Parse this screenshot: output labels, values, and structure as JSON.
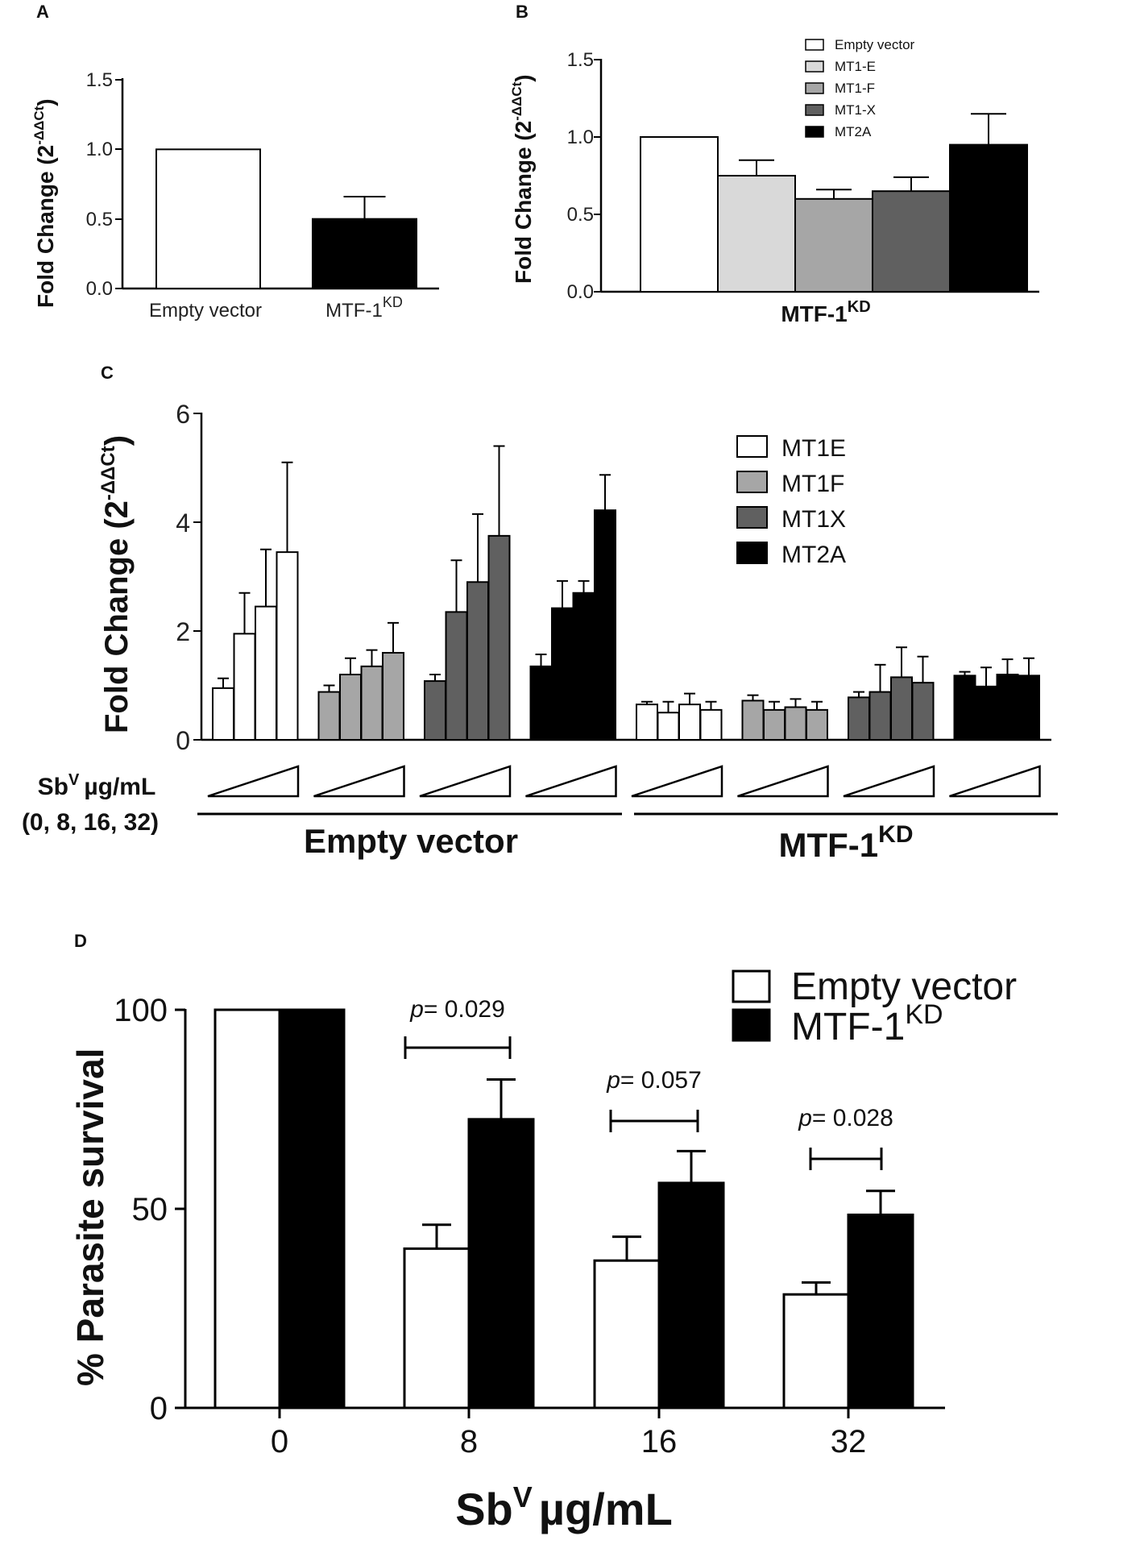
{
  "colors": {
    "empty_vector": "#ffffff",
    "mt1e": "#d9d9d9",
    "mt1f": "#a6a6a6",
    "mt1x": "#606060",
    "mt2a": "#000000",
    "mtf1kd": "#000000",
    "axis": "#000000"
  },
  "chart_data": [
    {
      "panel": "A",
      "type": "bar",
      "ylabel": "Fold Change (2",
      "ylabel_sup": "-ΔΔCt",
      "ylabel_close": ")",
      "ylim": [
        0,
        1.5
      ],
      "yticks": [
        "0.0",
        "0.5",
        "1.0",
        "1.5"
      ],
      "categories": [
        "Empty vector",
        "MTF-1"
      ],
      "category_sup": [
        "",
        "KD"
      ],
      "values": [
        1.0,
        0.5
      ],
      "errors": [
        0,
        0.16
      ]
    },
    {
      "panel": "B",
      "type": "bar",
      "ylabel": "Fold Change (2",
      "ylabel_sup": "-ΔΔCt",
      "ylabel_close": ")",
      "ylim": [
        0,
        1.5
      ],
      "yticks": [
        "0.0",
        "0.5",
        "1.0",
        "1.5"
      ],
      "xlabel": "MTF-1",
      "xlabel_sup": "KD",
      "series": [
        {
          "name": "Empty vector",
          "value": 1.0,
          "error": 0
        },
        {
          "name": "MT1-E",
          "value": 0.75,
          "error": 0.1
        },
        {
          "name": "MT1-F",
          "value": 0.6,
          "error": 0.06
        },
        {
          "name": "MT1-X",
          "value": 0.65,
          "error": 0.09
        },
        {
          "name": "MT2A",
          "value": 0.95,
          "error": 0.2
        }
      ]
    },
    {
      "panel": "C",
      "type": "bar",
      "ylabel": "Fold Change (2",
      "ylabel_sup": "-ΔΔCt",
      "ylabel_close": ")",
      "ylim": [
        0,
        6
      ],
      "yticks": [
        "0",
        "2",
        "4",
        "6"
      ],
      "dose_label": "Sb",
      "dose_label_sup": "V",
      "dose_unit": "µg/mL",
      "dose_values": "(0, 8, 16, 32)",
      "legend": [
        "MT1E",
        "MT1F",
        "MT1X",
        "MT2A"
      ],
      "groups": [
        {
          "name": "Empty vector",
          "name_sup": "",
          "series": [
            {
              "name": "MT1E",
              "values": [
                0.95,
                1.95,
                2.45,
                3.45
              ],
              "errors": [
                0.18,
                0.75,
                1.05,
                1.65
              ]
            },
            {
              "name": "MT1F",
              "values": [
                0.88,
                1.2,
                1.35,
                1.6
              ],
              "errors": [
                0.12,
                0.3,
                0.3,
                0.55
              ]
            },
            {
              "name": "MT1X",
              "values": [
                1.08,
                2.35,
                2.9,
                3.75
              ],
              "errors": [
                0.12,
                0.95,
                1.25,
                1.65
              ]
            },
            {
              "name": "MT2A",
              "values": [
                1.35,
                2.42,
                2.7,
                4.22
              ],
              "errors": [
                0.22,
                0.5,
                0.22,
                0.65
              ]
            }
          ]
        },
        {
          "name": "MTF-1",
          "name_sup": "KD",
          "series": [
            {
              "name": "MT1E",
              "values": [
                0.65,
                0.5,
                0.65,
                0.55
              ],
              "errors": [
                0.05,
                0.2,
                0.2,
                0.15
              ]
            },
            {
              "name": "MT1F",
              "values": [
                0.72,
                0.55,
                0.6,
                0.55
              ],
              "errors": [
                0.1,
                0.15,
                0.15,
                0.15
              ]
            },
            {
              "name": "MT1X",
              "values": [
                0.78,
                0.88,
                1.15,
                1.05
              ],
              "errors": [
                0.1,
                0.5,
                0.55,
                0.48
              ]
            },
            {
              "name": "MT2A",
              "values": [
                1.18,
                0.98,
                1.2,
                1.18
              ],
              "errors": [
                0.07,
                0.35,
                0.28,
                0.32
              ]
            }
          ]
        }
      ]
    },
    {
      "panel": "D",
      "type": "bar",
      "ylabel": "% Parasite survival",
      "xlabel": "Sb",
      "xlabel_sup": "V",
      "xlabel_unit": "µg/mL",
      "ylim": [
        0,
        100
      ],
      "yticks": [
        "0",
        "50",
        "100"
      ],
      "categories": [
        "0",
        "8",
        "16",
        "32"
      ],
      "series": [
        {
          "name": "Empty vector",
          "name_sup": "",
          "values": [
            100,
            40,
            37,
            28.5
          ],
          "errors": [
            0,
            6,
            6,
            3
          ]
        },
        {
          "name": "MTF-1",
          "name_sup": "KD",
          "values": [
            100,
            72.5,
            56.5,
            48.5
          ],
          "errors": [
            0,
            10,
            8,
            6
          ]
        }
      ],
      "annotations": [
        {
          "prefix": "p",
          "text": "= 0.029",
          "between": "8"
        },
        {
          "prefix": "p",
          "text": "= 0.057",
          "between": "16"
        },
        {
          "prefix": "p",
          "text": "= 0.028",
          "between": "32"
        }
      ]
    }
  ]
}
